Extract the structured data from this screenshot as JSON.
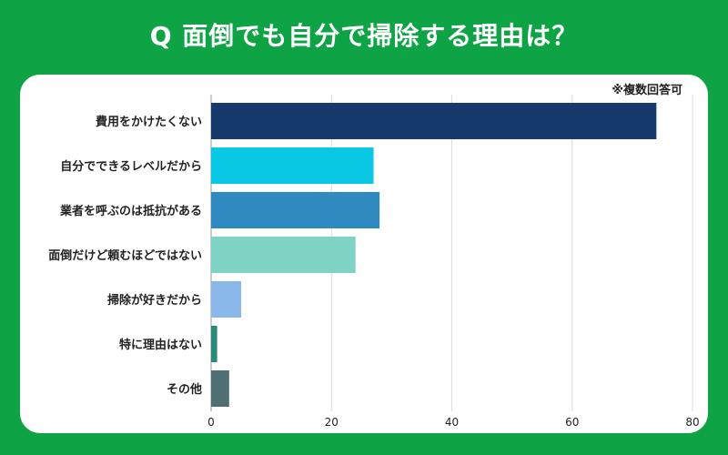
{
  "header": {
    "title": "Q 面倒でも自分で掃除する理由は？"
  },
  "note": "※複数回答可",
  "chart_data": {
    "type": "bar",
    "orientation": "horizontal",
    "categories": [
      "費用をかけたくない",
      "自分でできるレベルだから",
      "業者を呼ぶのは抵抗がある",
      "面倒だけど頼むほどではない",
      "掃除が好きだから",
      "特に理由はない",
      "その他"
    ],
    "values": [
      74,
      27,
      28,
      24,
      5,
      1,
      3
    ],
    "colors": [
      "#163a6b",
      "#08c8e4",
      "#2f8bbf",
      "#7fd3c4",
      "#8ab8ea",
      "#2a8a78",
      "#4f6f72"
    ],
    "xlim": [
      0,
      80
    ],
    "xticks": [
      0,
      20,
      40,
      60,
      80
    ],
    "grid": true
  }
}
